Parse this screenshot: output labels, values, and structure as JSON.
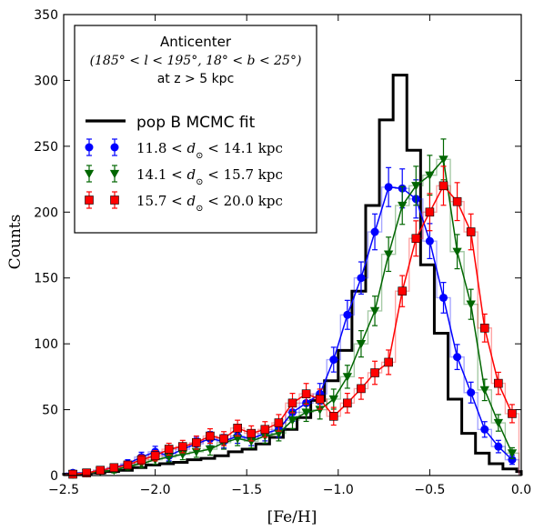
{
  "chart_data": {
    "type": "line",
    "xlabel": "[Fe/H]",
    "ylabel": "Counts",
    "xlim": [
      -2.5,
      0.0
    ],
    "ylim": [
      0,
      350
    ],
    "xticks": [
      -2.5,
      -2.0,
      -1.5,
      -1.0,
      -0.5,
      0.0
    ],
    "xtick_labels": [
      "−2.5",
      "−2.0",
      "−1.5",
      "−1.0",
      "−0.5",
      "0.0"
    ],
    "yticks": [
      0,
      50,
      100,
      150,
      200,
      250,
      300,
      350
    ],
    "ytick_labels": [
      "0",
      "50",
      "100",
      "150",
      "200",
      "250",
      "300",
      "350"
    ],
    "grid": false,
    "legend_placement": "top-left",
    "annotation": {
      "line1": "Anticenter",
      "line2": "(185° < l < 195°, 18° < b < 25°)",
      "line3": "at z > 5 kpc"
    },
    "model": {
      "name": "pop B MCMC fit",
      "color": "#000000",
      "bin_edges": [
        -2.5,
        -2.425,
        -2.35,
        -2.275,
        -2.2,
        -2.125,
        -2.05,
        -1.975,
        -1.9,
        -1.825,
        -1.75,
        -1.675,
        -1.6,
        -1.525,
        -1.45,
        -1.375,
        -1.3,
        -1.225,
        -1.15,
        -1.075,
        -1.0,
        -0.925,
        -0.85,
        -0.775,
        -0.7,
        -0.625,
        -0.55,
        -0.475,
        -0.4,
        -0.325,
        -0.25,
        -0.175,
        -0.1,
        -0.025,
        0.0
      ],
      "counts": [
        1,
        1,
        2,
        3,
        4,
        6,
        8,
        9,
        10,
        12,
        13,
        15,
        18,
        20,
        24,
        29,
        35,
        44,
        57,
        72,
        95,
        140,
        205,
        270,
        304,
        247,
        160,
        108,
        58,
        32,
        17,
        9,
        5,
        3
      ]
    },
    "series": [
      {
        "name": "11.8 < d⊙ < 14.1 kpc",
        "legend_range": [
          "11.8",
          "14.1"
        ],
        "color": "#0000ff",
        "marker": "circle",
        "x": [
          -2.45,
          -2.375,
          -2.3,
          -2.225,
          -2.15,
          -2.075,
          -2.0,
          -1.925,
          -1.85,
          -1.775,
          -1.7,
          -1.625,
          -1.55,
          -1.475,
          -1.4,
          -1.325,
          -1.25,
          -1.175,
          -1.1,
          -1.025,
          -0.95,
          -0.875,
          -0.8,
          -0.725,
          -0.65,
          -0.575,
          -0.5,
          -0.425,
          -0.35,
          -0.275,
          -0.2,
          -0.125,
          -0.05
        ],
        "y": [
          2,
          2,
          4,
          6,
          9,
          14,
          18,
          15,
          20,
          24,
          28,
          26,
          30,
          28,
          32,
          35,
          48,
          55,
          62,
          88,
          122,
          150,
          185,
          219,
          218,
          210,
          178,
          135,
          90,
          63,
          35,
          22,
          12
        ],
        "err": [
          1.5,
          1.5,
          2,
          2.5,
          3,
          3.7,
          4.2,
          3.9,
          4.5,
          4.9,
          5.3,
          5.1,
          5.5,
          5.3,
          5.7,
          5.9,
          6.9,
          7.4,
          7.9,
          9.4,
          11,
          12.2,
          13.6,
          14.8,
          14.8,
          14.5,
          13.3,
          11.6,
          9.5,
          7.9,
          5.9,
          4.7,
          3.5
        ]
      },
      {
        "name": "14.1 < d⊙ < 15.7 kpc",
        "legend_range": [
          "14.1",
          "15.7"
        ],
        "color": "#006600",
        "marker": "triangle-down",
        "x": [
          -2.45,
          -2.375,
          -2.3,
          -2.225,
          -2.15,
          -2.075,
          -2.0,
          -1.925,
          -1.85,
          -1.775,
          -1.7,
          -1.625,
          -1.55,
          -1.475,
          -1.4,
          -1.325,
          -1.25,
          -1.175,
          -1.1,
          -1.025,
          -0.95,
          -0.875,
          -0.8,
          -0.725,
          -0.65,
          -0.575,
          -0.5,
          -0.425,
          -0.35,
          -0.275,
          -0.2,
          -0.125,
          -0.05
        ],
        "y": [
          1,
          2,
          3,
          4,
          7,
          9,
          12,
          14,
          16,
          18,
          20,
          25,
          28,
          26,
          30,
          32,
          42,
          48,
          50,
          58,
          75,
          100,
          125,
          168,
          205,
          220,
          228,
          240,
          170,
          130,
          65,
          40,
          17
        ],
        "err": [
          1,
          1.5,
          1.8,
          2,
          2.7,
          3,
          3.5,
          3.7,
          4,
          4.2,
          4.5,
          5,
          5.3,
          5.1,
          5.5,
          5.7,
          6.5,
          6.9,
          7.1,
          7.6,
          8.7,
          10,
          11.2,
          13,
          14.3,
          14.8,
          15.1,
          15.5,
          13,
          11.4,
          8.1,
          6.3,
          4.1
        ]
      },
      {
        "name": "15.7 < d⊙ < 20.0 kpc",
        "legend_range": [
          "15.7",
          "20.0"
        ],
        "color": "#ff0000",
        "marker": "square",
        "x": [
          -2.45,
          -2.375,
          -2.3,
          -2.225,
          -2.15,
          -2.075,
          -2.0,
          -1.925,
          -1.85,
          -1.775,
          -1.7,
          -1.625,
          -1.55,
          -1.475,
          -1.4,
          -1.325,
          -1.25,
          -1.175,
          -1.1,
          -1.025,
          -0.95,
          -0.875,
          -0.8,
          -0.725,
          -0.65,
          -0.575,
          -0.5,
          -0.425,
          -0.35,
          -0.275,
          -0.2,
          -0.125,
          -0.05
        ],
        "y": [
          1,
          2,
          4,
          6,
          8,
          12,
          15,
          20,
          22,
          25,
          30,
          28,
          36,
          32,
          35,
          40,
          55,
          62,
          58,
          45,
          55,
          66,
          78,
          86,
          140,
          180,
          200,
          220,
          208,
          185,
          112,
          70,
          47
        ],
        "err": [
          1,
          1.5,
          2,
          2.5,
          2.8,
          3.5,
          3.9,
          4.5,
          4.7,
          5,
          5.5,
          5.3,
          6,
          5.7,
          5.9,
          6.3,
          7.4,
          7.9,
          7.6,
          6.7,
          7.4,
          8.1,
          8.8,
          9.3,
          11.8,
          13.4,
          14.1,
          14.8,
          14.4,
          13.6,
          10.6,
          8.4,
          6.9
        ]
      }
    ]
  }
}
